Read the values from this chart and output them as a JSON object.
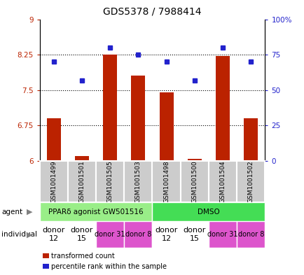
{
  "title": "GDS5378 / 7988414",
  "samples": [
    "GSM1001499",
    "GSM1001501",
    "GSM1001505",
    "GSM1001503",
    "GSM1001498",
    "GSM1001500",
    "GSM1001504",
    "GSM1001502"
  ],
  "red_values": [
    6.9,
    6.1,
    8.25,
    7.8,
    7.45,
    6.05,
    8.22,
    6.9
  ],
  "blue_values": [
    70,
    57,
    80,
    75,
    70,
    57,
    80,
    70
  ],
  "ylim_left": [
    6,
    9
  ],
  "ylim_right": [
    0,
    100
  ],
  "yticks_left": [
    6,
    6.75,
    7.5,
    8.25,
    9
  ],
  "yticks_right": [
    0,
    25,
    50,
    75,
    100
  ],
  "ytick_labels_left": [
    "6",
    "6.75",
    "7.5",
    "8.25",
    "9"
  ],
  "ytick_labels_right": [
    "0",
    "25",
    "50",
    "75",
    "100%"
  ],
  "red_color": "#bb2200",
  "blue_color": "#2222cc",
  "bar_width": 0.5,
  "agent_label_ppar": "PPARδ agonist GW501516",
  "agent_label_dmso": "DMSO",
  "agent_color_ppar": "#99ee88",
  "agent_color_dmso": "#44dd55",
  "indiv_colors": [
    "#ffffff",
    "#ffffff",
    "#dd55cc",
    "#dd55cc",
    "#ffffff",
    "#ffffff",
    "#dd55cc",
    "#dd55cc"
  ],
  "indiv_labels": [
    "donor\n12",
    "donor\n15",
    "donor 31",
    "donor 8",
    "donor\n12",
    "donor\n15",
    "donor 31",
    "donor 8"
  ],
  "indiv_fontsizes": [
    8,
    8,
    7,
    7,
    8,
    8,
    7,
    7
  ],
  "legend_items": [
    {
      "color": "#bb2200",
      "label": "transformed count"
    },
    {
      "color": "#2222cc",
      "label": "percentile rank within the sample"
    }
  ],
  "agent_row_label": "agent",
  "individual_row_label": "individual",
  "sample_box_color": "#cccccc",
  "bg_color": "#ffffff"
}
